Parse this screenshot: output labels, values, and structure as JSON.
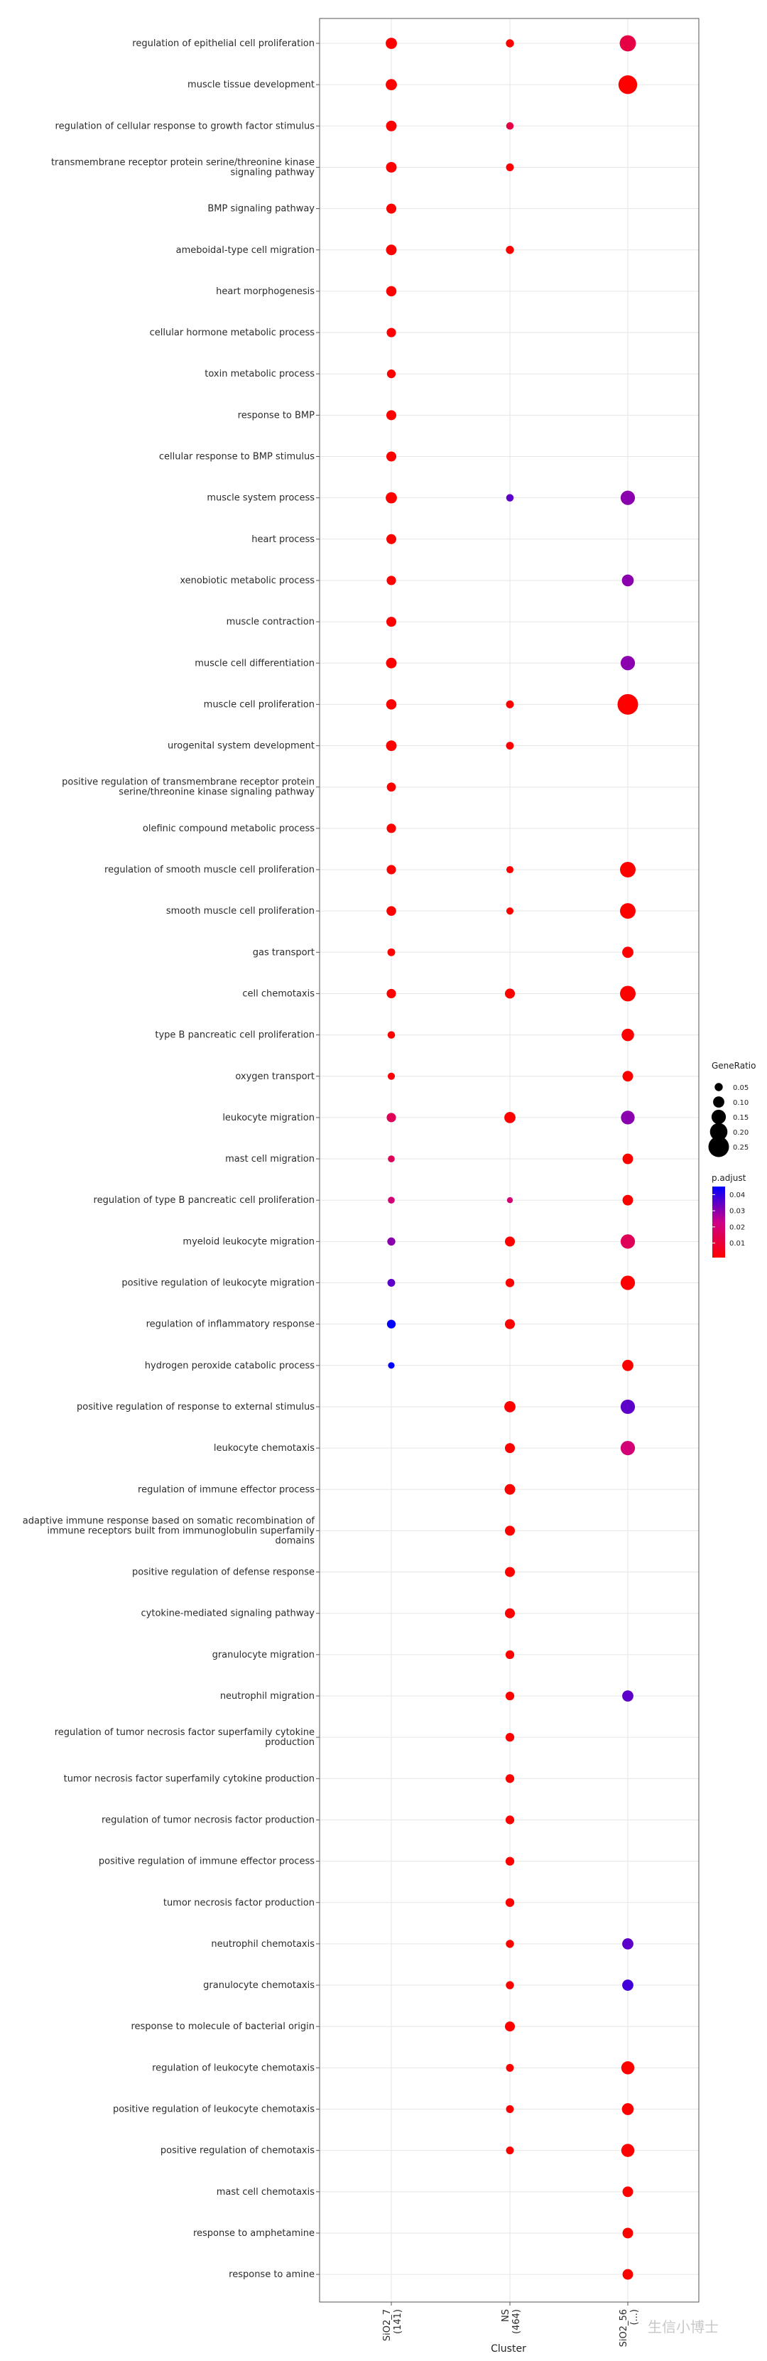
{
  "chart_data": {
    "type": "scatter",
    "title": "",
    "xlabel": "Cluster",
    "ylabel": "",
    "clusters": [
      {
        "name": "SiO2_7",
        "count": "(141)"
      },
      {
        "name": "NS",
        "count": "(464)"
      },
      {
        "name": "SiO2_56",
        "count": "(...)"
      }
    ],
    "terms": [
      "regulation of epithelial cell proliferation",
      "muscle tissue development",
      "regulation of cellular response to growth factor stimulus",
      "transmembrane receptor protein serine/threonine kinase signaling pathway",
      "BMP signaling pathway",
      "ameboidal-type cell migration",
      "heart morphogenesis",
      "cellular hormone metabolic process",
      "toxin metabolic process",
      "response to BMP",
      "cellular response to BMP stimulus",
      "muscle system process",
      "heart process",
      "xenobiotic metabolic process",
      "muscle contraction",
      "muscle cell differentiation",
      "muscle cell proliferation",
      "urogenital system development",
      "positive regulation of transmembrane receptor protein serine/threonine kinase signaling pathway",
      "olefinic compound metabolic process",
      "regulation of smooth muscle cell proliferation",
      "smooth muscle cell proliferation",
      "gas transport",
      "cell chemotaxis",
      "type B pancreatic cell proliferation",
      "oxygen transport",
      "leukocyte migration",
      "mast cell migration",
      "regulation of type B pancreatic cell proliferation",
      "myeloid leukocyte migration",
      "positive regulation of leukocyte migration",
      "regulation of inflammatory response",
      "hydrogen peroxide catabolic process",
      "positive regulation of response to external stimulus",
      "leukocyte chemotaxis",
      "regulation of immune effector process",
      "adaptive immune response based on somatic recombination of immune receptors built from immunoglobulin superfamily domains",
      "positive regulation of defense response",
      "cytokine-mediated signaling pathway",
      "granulocyte migration",
      "neutrophil migration",
      "regulation of tumor necrosis factor superfamily cytokine production",
      "tumor necrosis factor superfamily cytokine production",
      "regulation of tumor necrosis factor production",
      "positive regulation of immune effector process",
      "tumor necrosis factor production",
      "neutrophil chemotaxis",
      "granulocyte chemotaxis",
      "response to molecule of bacterial origin",
      "regulation of leukocyte chemotaxis",
      "positive regulation of leukocyte chemotaxis",
      "positive regulation of chemotaxis",
      "mast cell chemotaxis",
      "response to amphetamine",
      "response to amine"
    ],
    "points": [
      {
        "term": 0,
        "cluster": 0,
        "gene_ratio": 0.1,
        "p_adjust": 0.001
      },
      {
        "term": 0,
        "cluster": 1,
        "gene_ratio": 0.05,
        "p_adjust": 0.001
      },
      {
        "term": 0,
        "cluster": 2,
        "gene_ratio": 0.18,
        "p_adjust": 0.012
      },
      {
        "term": 1,
        "cluster": 0,
        "gene_ratio": 0.1,
        "p_adjust": 0.001
      },
      {
        "term": 1,
        "cluster": 2,
        "gene_ratio": 0.22,
        "p_adjust": 0.001
      },
      {
        "term": 2,
        "cluster": 0,
        "gene_ratio": 0.09,
        "p_adjust": 0.001
      },
      {
        "term": 2,
        "cluster": 1,
        "gene_ratio": 0.04,
        "p_adjust": 0.012
      },
      {
        "term": 3,
        "cluster": 0,
        "gene_ratio": 0.09,
        "p_adjust": 0.001
      },
      {
        "term": 3,
        "cluster": 1,
        "gene_ratio": 0.045,
        "p_adjust": 0.001
      },
      {
        "term": 4,
        "cluster": 0,
        "gene_ratio": 0.08,
        "p_adjust": 0.001
      },
      {
        "term": 5,
        "cluster": 0,
        "gene_ratio": 0.09,
        "p_adjust": 0.001
      },
      {
        "term": 5,
        "cluster": 1,
        "gene_ratio": 0.05,
        "p_adjust": 0.001
      },
      {
        "term": 6,
        "cluster": 0,
        "gene_ratio": 0.085,
        "p_adjust": 0.001
      },
      {
        "term": 7,
        "cluster": 0,
        "gene_ratio": 0.07,
        "p_adjust": 0.001
      },
      {
        "term": 8,
        "cluster": 0,
        "gene_ratio": 0.06,
        "p_adjust": 0.001
      },
      {
        "term": 9,
        "cluster": 0,
        "gene_ratio": 0.08,
        "p_adjust": 0.001
      },
      {
        "term": 10,
        "cluster": 0,
        "gene_ratio": 0.08,
        "p_adjust": 0.001
      },
      {
        "term": 11,
        "cluster": 0,
        "gene_ratio": 0.1,
        "p_adjust": 0.001
      },
      {
        "term": 11,
        "cluster": 1,
        "gene_ratio": 0.04,
        "p_adjust": 0.035
      },
      {
        "term": 11,
        "cluster": 2,
        "gene_ratio": 0.15,
        "p_adjust": 0.03
      },
      {
        "term": 12,
        "cluster": 0,
        "gene_ratio": 0.08,
        "p_adjust": 0.001
      },
      {
        "term": 13,
        "cluster": 0,
        "gene_ratio": 0.07,
        "p_adjust": 0.001
      },
      {
        "term": 13,
        "cluster": 2,
        "gene_ratio": 0.11,
        "p_adjust": 0.03
      },
      {
        "term": 14,
        "cluster": 0,
        "gene_ratio": 0.08,
        "p_adjust": 0.001
      },
      {
        "term": 15,
        "cluster": 0,
        "gene_ratio": 0.09,
        "p_adjust": 0.001
      },
      {
        "term": 15,
        "cluster": 2,
        "gene_ratio": 0.15,
        "p_adjust": 0.03
      },
      {
        "term": 16,
        "cluster": 0,
        "gene_ratio": 0.085,
        "p_adjust": 0.001
      },
      {
        "term": 16,
        "cluster": 1,
        "gene_ratio": 0.045,
        "p_adjust": 0.001
      },
      {
        "term": 16,
        "cluster": 2,
        "gene_ratio": 0.25,
        "p_adjust": 0.001
      },
      {
        "term": 17,
        "cluster": 0,
        "gene_ratio": 0.09,
        "p_adjust": 0.001
      },
      {
        "term": 17,
        "cluster": 1,
        "gene_ratio": 0.045,
        "p_adjust": 0.001
      },
      {
        "term": 18,
        "cluster": 0,
        "gene_ratio": 0.065,
        "p_adjust": 0.001
      },
      {
        "term": 19,
        "cluster": 0,
        "gene_ratio": 0.07,
        "p_adjust": 0.001
      },
      {
        "term": 20,
        "cluster": 0,
        "gene_ratio": 0.07,
        "p_adjust": 0.001
      },
      {
        "term": 20,
        "cluster": 1,
        "gene_ratio": 0.035,
        "p_adjust": 0.001
      },
      {
        "term": 20,
        "cluster": 2,
        "gene_ratio": 0.17,
        "p_adjust": 0.001
      },
      {
        "term": 21,
        "cluster": 0,
        "gene_ratio": 0.075,
        "p_adjust": 0.001
      },
      {
        "term": 21,
        "cluster": 1,
        "gene_ratio": 0.035,
        "p_adjust": 0.001
      },
      {
        "term": 21,
        "cluster": 2,
        "gene_ratio": 0.17,
        "p_adjust": 0.001
      },
      {
        "term": 22,
        "cluster": 0,
        "gene_ratio": 0.045,
        "p_adjust": 0.001
      },
      {
        "term": 22,
        "cluster": 2,
        "gene_ratio": 0.1,
        "p_adjust": 0.001
      },
      {
        "term": 23,
        "cluster": 0,
        "gene_ratio": 0.07,
        "p_adjust": 0.001
      },
      {
        "term": 23,
        "cluster": 1,
        "gene_ratio": 0.08,
        "p_adjust": 0.001
      },
      {
        "term": 23,
        "cluster": 2,
        "gene_ratio": 0.17,
        "p_adjust": 0.001
      },
      {
        "term": 24,
        "cluster": 0,
        "gene_ratio": 0.04,
        "p_adjust": 0.001
      },
      {
        "term": 24,
        "cluster": 2,
        "gene_ratio": 0.12,
        "p_adjust": 0.001
      },
      {
        "term": 25,
        "cluster": 0,
        "gene_ratio": 0.035,
        "p_adjust": 0.002
      },
      {
        "term": 25,
        "cluster": 2,
        "gene_ratio": 0.09,
        "p_adjust": 0.001
      },
      {
        "term": 26,
        "cluster": 0,
        "gene_ratio": 0.07,
        "p_adjust": 0.015
      },
      {
        "term": 26,
        "cluster": 1,
        "gene_ratio": 0.1,
        "p_adjust": 0.001
      },
      {
        "term": 26,
        "cluster": 2,
        "gene_ratio": 0.14,
        "p_adjust": 0.03
      },
      {
        "term": 27,
        "cluster": 0,
        "gene_ratio": 0.03,
        "p_adjust": 0.015
      },
      {
        "term": 27,
        "cluster": 2,
        "gene_ratio": 0.09,
        "p_adjust": 0.001
      },
      {
        "term": 28,
        "cluster": 0,
        "gene_ratio": 0.03,
        "p_adjust": 0.02
      },
      {
        "term": 28,
        "cluster": 1,
        "gene_ratio": 0.015,
        "p_adjust": 0.02
      },
      {
        "term": 28,
        "cluster": 2,
        "gene_ratio": 0.09,
        "p_adjust": 0.001
      },
      {
        "term": 29,
        "cluster": 0,
        "gene_ratio": 0.05,
        "p_adjust": 0.03
      },
      {
        "term": 29,
        "cluster": 1,
        "gene_ratio": 0.08,
        "p_adjust": 0.001
      },
      {
        "term": 29,
        "cluster": 2,
        "gene_ratio": 0.15,
        "p_adjust": 0.015
      },
      {
        "term": 30,
        "cluster": 0,
        "gene_ratio": 0.045,
        "p_adjust": 0.035
      },
      {
        "term": 30,
        "cluster": 1,
        "gene_ratio": 0.06,
        "p_adjust": 0.001
      },
      {
        "term": 30,
        "cluster": 2,
        "gene_ratio": 0.15,
        "p_adjust": 0.001
      },
      {
        "term": 31,
        "cluster": 0,
        "gene_ratio": 0.06,
        "p_adjust": 0.05
      },
      {
        "term": 31,
        "cluster": 1,
        "gene_ratio": 0.08,
        "p_adjust": 0.001
      },
      {
        "term": 32,
        "cluster": 0,
        "gene_ratio": 0.025,
        "p_adjust": 0.05
      },
      {
        "term": 32,
        "cluster": 2,
        "gene_ratio": 0.1,
        "p_adjust": 0.001
      },
      {
        "term": 33,
        "cluster": 1,
        "gene_ratio": 0.1,
        "p_adjust": 0.001
      },
      {
        "term": 33,
        "cluster": 2,
        "gene_ratio": 0.15,
        "p_adjust": 0.035
      },
      {
        "term": 34,
        "cluster": 1,
        "gene_ratio": 0.08,
        "p_adjust": 0.001
      },
      {
        "term": 34,
        "cluster": 2,
        "gene_ratio": 0.15,
        "p_adjust": 0.02
      },
      {
        "term": 35,
        "cluster": 1,
        "gene_ratio": 0.09,
        "p_adjust": 0.001
      },
      {
        "term": 36,
        "cluster": 1,
        "gene_ratio": 0.08,
        "p_adjust": 0.001
      },
      {
        "term": 37,
        "cluster": 1,
        "gene_ratio": 0.08,
        "p_adjust": 0.001
      },
      {
        "term": 38,
        "cluster": 1,
        "gene_ratio": 0.08,
        "p_adjust": 0.001
      },
      {
        "term": 39,
        "cluster": 1,
        "gene_ratio": 0.06,
        "p_adjust": 0.001
      },
      {
        "term": 40,
        "cluster": 1,
        "gene_ratio": 0.06,
        "p_adjust": 0.001
      },
      {
        "term": 40,
        "cluster": 2,
        "gene_ratio": 0.1,
        "p_adjust": 0.035
      },
      {
        "term": 41,
        "cluster": 1,
        "gene_ratio": 0.06,
        "p_adjust": 0.001
      },
      {
        "term": 42,
        "cluster": 1,
        "gene_ratio": 0.06,
        "p_adjust": 0.001
      },
      {
        "term": 43,
        "cluster": 1,
        "gene_ratio": 0.06,
        "p_adjust": 0.001
      },
      {
        "term": 44,
        "cluster": 1,
        "gene_ratio": 0.06,
        "p_adjust": 0.001
      },
      {
        "term": 45,
        "cluster": 1,
        "gene_ratio": 0.06,
        "p_adjust": 0.001
      },
      {
        "term": 46,
        "cluster": 1,
        "gene_ratio": 0.05,
        "p_adjust": 0.001
      },
      {
        "term": 46,
        "cluster": 2,
        "gene_ratio": 0.1,
        "p_adjust": 0.035
      },
      {
        "term": 47,
        "cluster": 1,
        "gene_ratio": 0.05,
        "p_adjust": 0.001
      },
      {
        "term": 47,
        "cluster": 2,
        "gene_ratio": 0.1,
        "p_adjust": 0.038
      },
      {
        "term": 48,
        "cluster": 1,
        "gene_ratio": 0.08,
        "p_adjust": 0.001
      },
      {
        "term": 49,
        "cluster": 1,
        "gene_ratio": 0.045,
        "p_adjust": 0.001
      },
      {
        "term": 49,
        "cluster": 2,
        "gene_ratio": 0.13,
        "p_adjust": 0.001
      },
      {
        "term": 50,
        "cluster": 1,
        "gene_ratio": 0.045,
        "p_adjust": 0.001
      },
      {
        "term": 50,
        "cluster": 2,
        "gene_ratio": 0.11,
        "p_adjust": 0.001
      },
      {
        "term": 51,
        "cluster": 1,
        "gene_ratio": 0.045,
        "p_adjust": 0.001
      },
      {
        "term": 51,
        "cluster": 2,
        "gene_ratio": 0.13,
        "p_adjust": 0.001
      },
      {
        "term": 52,
        "cluster": 2,
        "gene_ratio": 0.09,
        "p_adjust": 0.001
      },
      {
        "term": 53,
        "cluster": 2,
        "gene_ratio": 0.09,
        "p_adjust": 0.001
      },
      {
        "term": 54,
        "cluster": 2,
        "gene_ratio": 0.09,
        "p_adjust": 0.001
      }
    ],
    "size_legend": {
      "title": "GeneRatio",
      "values": [
        0.05,
        0.1,
        0.15,
        0.2,
        0.25
      ],
      "labels": [
        "0.05",
        "0.10",
        "0.15",
        "0.20",
        "0.25"
      ]
    },
    "color_legend": {
      "title": "p.adjust",
      "labels": [
        "0.04",
        "0.03",
        "0.02",
        "0.01"
      ],
      "values": [
        0.04,
        0.03,
        0.02,
        0.01
      ],
      "range": [
        0.001,
        0.045
      ],
      "low_color": "#ff0000",
      "high_color": "#0000ff"
    },
    "grid": true,
    "legend_position": "right"
  },
  "watermark": "生信小博士"
}
